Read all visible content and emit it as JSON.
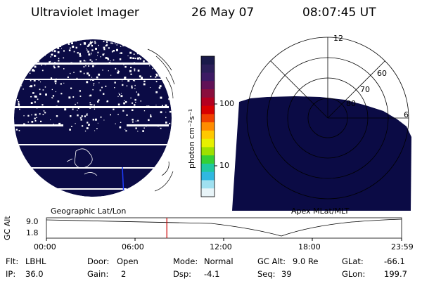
{
  "header": {
    "instrument": "Ultraviolet Imager",
    "date": "26 May 07",
    "time": "08:07:45 UT"
  },
  "colorbar": {
    "unit_label": "photon cm⁻²s⁻¹",
    "ticks": [
      "100",
      "10"
    ],
    "colors": [
      "#1a1a4a",
      "#2b1e58",
      "#3d1a64",
      "#611257",
      "#8a0f3d",
      "#b30020",
      "#d80000",
      "#f04000",
      "#ff8c00",
      "#ffc800",
      "#e8f000",
      "#9ee000",
      "#35d035",
      "#20c8a0",
      "#30b8e0",
      "#9fe0f0",
      "#e8f4f8"
    ]
  },
  "left_panel": {
    "caption": "Geographic Lat/Lon"
  },
  "right_panel": {
    "caption": "Apex MLat/MLT",
    "ring_labels": [
      "60",
      "70",
      "80"
    ],
    "mlt_labels": [
      "12",
      "6"
    ]
  },
  "timeline": {
    "ylabel": "GC Alt",
    "y_ticks": [
      "9.0",
      "1.8"
    ],
    "x_ticks": [
      "00:00",
      "06:00",
      "12:00",
      "18:00",
      "23:59"
    ],
    "marker_time": "08:07:45"
  },
  "info": {
    "row1": [
      {
        "key": "Flt:",
        "val": "LBHL"
      },
      {
        "key": "Door:",
        "val": "Open"
      },
      {
        "key": "Mode:",
        "val": "Normal"
      },
      {
        "key": "GC Alt:",
        "val": "9.0 Re"
      },
      {
        "key": "GLat:",
        "val": "-66.1"
      }
    ],
    "row2": [
      {
        "key": "IP:",
        "val": "36.0"
      },
      {
        "key": "Gain:",
        "val": "2"
      },
      {
        "key": "Dsp:",
        "val": "-4.1"
      },
      {
        "key": "Seq:",
        "val": "39"
      },
      {
        "key": "GLon:",
        "val": "199.7"
      }
    ]
  },
  "palette": {
    "image_fill": "#0b0b45",
    "marker": "#cc0000"
  }
}
